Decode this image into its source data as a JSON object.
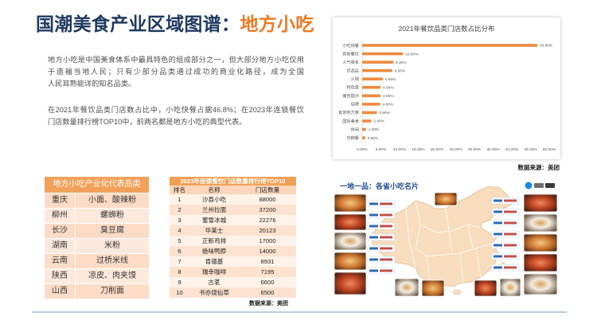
{
  "header": {
    "title_main": "国潮美食产业区域图谱：",
    "title_highlight": "地方小吃"
  },
  "colors": {
    "title_navy": "#1f3a5f",
    "accent_orange": "#ec7a25",
    "bar": "#ed8a3f",
    "table_header": "#f2a15a"
  },
  "intro": {
    "paragraph_1": [
      "地方小吃是中国美食体系中最具特色的组成部分之一，但大部分地方小吃仅用",
      "于造福当地人民；只有少部分品类通过成功的商业化路径，成为全国",
      "人民耳熟能详的知名品类。"
    ],
    "paragraph_2": [
      "在2021年餐饮品类门店数占比中，小吃快餐占据46.8%；在2023年连锁餐饮",
      "门店数量排行榜TOP10中，前两名都是地方小吃的典型代表。"
    ]
  },
  "chart_data": {
    "type": "bar",
    "orientation": "horizontal",
    "title": "2021年餐饮品类门店数占比分布",
    "categories": [
      "小吃快餐",
      "其他餐饮",
      "人气菜系",
      "饮品店",
      "火锅",
      "特色菜",
      "面包甜点",
      "烧烤",
      "其他地方菜",
      "国际美食",
      "休闲",
      "日韩餐"
    ],
    "values": [
      46.8,
      10.9,
      8.3,
      8.0,
      5.5,
      4.9,
      4.9,
      4.8,
      3.9,
      2.4,
      1.0,
      0.8
    ],
    "xlim": [
      0,
      50
    ],
    "xticks": [
      0,
      5,
      10,
      15,
      20,
      25,
      30,
      35,
      40,
      45,
      50
    ],
    "grid": false
  },
  "chart_source": "数据来源：美团",
  "regional_table": {
    "title": "地方小吃产业化代表品类",
    "rows": [
      {
        "region": "重庆",
        "snacks": "小面、酸辣粉"
      },
      {
        "region": "柳州",
        "snacks": "螺蛳粉"
      },
      {
        "region": "长沙",
        "snacks": "臭豆腐"
      },
      {
        "region": "湖南",
        "snacks": "米粉"
      },
      {
        "region": "云南",
        "snacks": "过桥米线"
      },
      {
        "region": "陕西",
        "snacks": "凉皮、肉夹馍"
      },
      {
        "region": "山西",
        "snacks": "刀削面"
      }
    ]
  },
  "ranking_table": {
    "title": "2023年连锁餐饮门店数量排行榜TOP10",
    "headers": [
      "排名",
      "名称",
      "门店数量"
    ],
    "rows": [
      {
        "rank": "1",
        "name": "沙县小吃",
        "stores": "88000"
      },
      {
        "rank": "2",
        "name": "兰州拉面",
        "stores": "37200"
      },
      {
        "rank": "3",
        "name": "蜜雪冰城",
        "stores": "22276"
      },
      {
        "rank": "4",
        "name": "华莱士",
        "stores": "20123"
      },
      {
        "rank": "5",
        "name": "正新鸡排",
        "stores": "17000"
      },
      {
        "rank": "6",
        "name": "绝味鸭脖",
        "stores": "14000"
      },
      {
        "rank": "7",
        "name": "肯德基",
        "stores": "8931"
      },
      {
        "rank": "8",
        "name": "瑞幸咖啡",
        "stores": "7195"
      },
      {
        "rank": "9",
        "name": "古茗",
        "stores": "6600"
      },
      {
        "rank": "10",
        "name": "书亦烧仙草",
        "stores": "6500"
      }
    ],
    "source": "数据来源：美团"
  },
  "map_panel": {
    "title": "一地一品：各省小吃名片"
  }
}
